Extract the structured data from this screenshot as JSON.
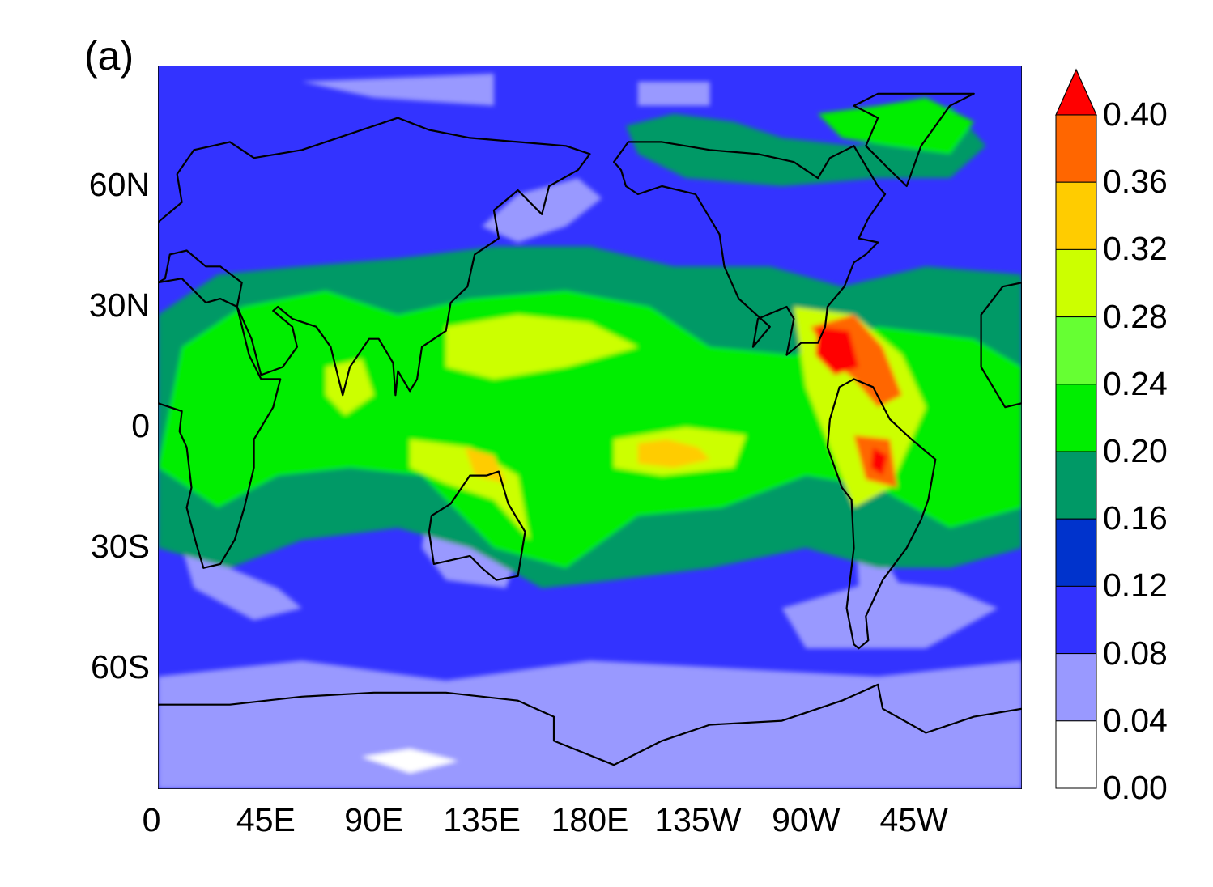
{
  "panel_label": "(a)",
  "map": {
    "projection": "cylindrical equidistant",
    "lon_range": [
      0,
      360
    ],
    "lat_range": [
      -90,
      90
    ],
    "lat_tick_labels": [
      {
        "lat": 60,
        "label": "60N"
      },
      {
        "lat": 30,
        "label": "30N"
      },
      {
        "lat": 0,
        "label": "0"
      },
      {
        "lat": -30,
        "label": "30S"
      },
      {
        "lat": -60,
        "label": "60S"
      }
    ],
    "lon_tick_labels": [
      {
        "lon": 0,
        "label": "0"
      },
      {
        "lon": 45,
        "label": "45E"
      },
      {
        "lon": 90,
        "label": "90E"
      },
      {
        "lon": 135,
        "label": "135E"
      },
      {
        "lon": 180,
        "label": "180E"
      },
      {
        "lon": 225,
        "label": "135W"
      },
      {
        "lon": 270,
        "label": "90W"
      },
      {
        "lon": 315,
        "label": "45W"
      }
    ],
    "background_level_color": "#3333ff",
    "regions": [
      {
        "name": "arctic-ocean-low",
        "color": "#9999ff"
      },
      {
        "name": "southern-ocean-low",
        "color": "#9999ff"
      },
      {
        "name": "antarctica-white",
        "color": "#ffffff"
      },
      {
        "name": "tropical-belt",
        "color": "#009966"
      },
      {
        "name": "itcz-green",
        "color": "#00ee00"
      },
      {
        "name": "warm-pool",
        "color": "#ccff00"
      },
      {
        "name": "caribbean-max",
        "color": "#ff0000"
      },
      {
        "name": "amazon-max",
        "color": "#ff6600"
      },
      {
        "name": "central-pacific-max",
        "color": "#ffcc00"
      }
    ]
  },
  "colorbar": {
    "levels": [
      "0.00",
      "0.04",
      "0.08",
      "0.12",
      "0.16",
      "0.20",
      "0.24",
      "0.28",
      "0.32",
      "0.36",
      "0.40"
    ],
    "colors": [
      "#ffffff",
      "#9999ff",
      "#3333ff",
      "#0033cc",
      "#009966",
      "#00ee00",
      "#66ff33",
      "#ccff00",
      "#ffcc00",
      "#ff6600"
    ],
    "extend_max_color": "#ff0000"
  }
}
